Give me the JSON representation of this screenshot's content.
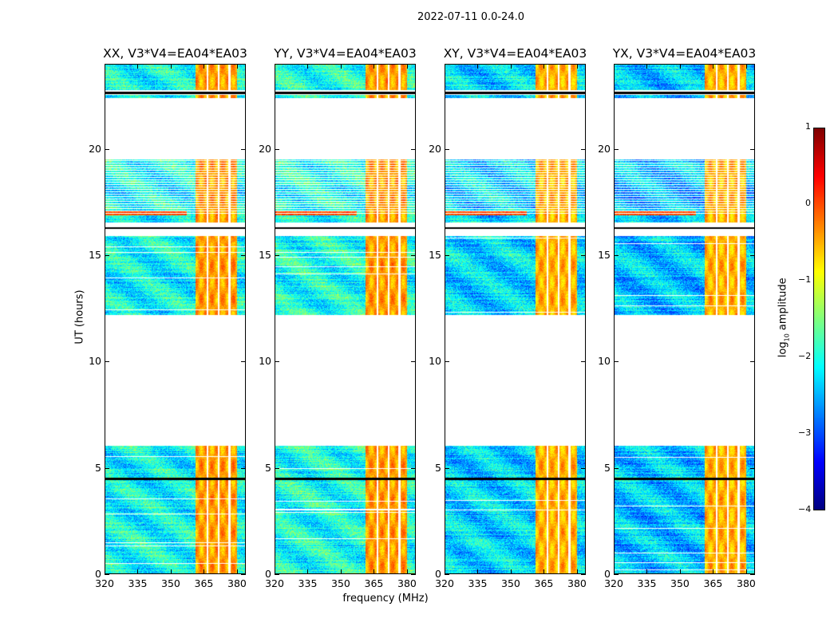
{
  "chart_data": {
    "type": "heatmap",
    "title": "2022-07-11 0.0-24.0",
    "xlabel": "frequency (MHz)",
    "ylabel": "UT (hours)",
    "xlim": [
      320,
      384
    ],
    "ylim": [
      0,
      24
    ],
    "xticks": [
      "320",
      "335",
      "350",
      "365",
      "380"
    ],
    "xtick_values": [
      320,
      335,
      350,
      365,
      380
    ],
    "yticks": [
      "0",
      "5",
      "10",
      "15",
      "20"
    ],
    "ytick_values": [
      0,
      5,
      10,
      15,
      20
    ],
    "panels": [
      {
        "title": "XX, V3*V4=EA04*EA03",
        "background_level": -2.1,
        "band_level": -0.4
      },
      {
        "title": "YY, V3*V4=EA04*EA03",
        "background_level": -2.0,
        "band_level": -0.4
      },
      {
        "title": "XY, V3*V4=EA04*EA03",
        "background_level": -2.3,
        "band_level": -0.5
      },
      {
        "title": "YX, V3*V4=EA04*EA03",
        "background_level": -2.4,
        "band_level": -0.5
      }
    ],
    "data_time_blocks_hours": [
      [
        0,
        6.05
      ],
      [
        12.2,
        15.9
      ],
      [
        16.55,
        16.95
      ],
      [
        17.0,
        19.5
      ],
      [
        22.4,
        22.55
      ],
      [
        22.8,
        24
      ]
    ],
    "flag_lines_hours": [
      4.5,
      16.3,
      22.65
    ],
    "strong_band_mhz": [
      361,
      380
    ],
    "colorbar": {
      "label": "log10 amplitude",
      "label_main": "log",
      "label_sub": "10",
      "label_rest": " amplitude",
      "range": [
        -4,
        1
      ],
      "ticks": [
        "1",
        "0",
        "−1",
        "−2",
        "−3",
        "−4"
      ],
      "tick_values": [
        1,
        0,
        -1,
        -2,
        -3,
        -4
      ],
      "colormap": "jet"
    }
  }
}
